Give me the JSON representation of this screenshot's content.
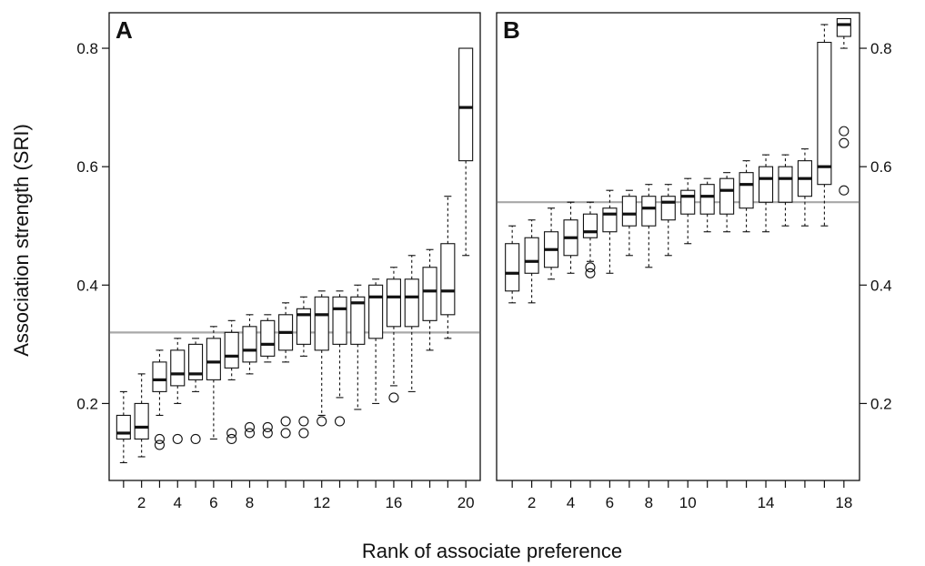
{
  "chart_data": [
    {
      "type": "boxplot",
      "panel_label": "A",
      "y_axis_side": "left",
      "ylim": [
        0.07,
        0.86
      ],
      "yticks": [
        0.2,
        0.4,
        0.6,
        0.8
      ],
      "ytick_labels": [
        "0.2",
        "0.4",
        "0.6",
        "0.8"
      ],
      "xlim": [
        0.2,
        20.8
      ],
      "xticks": [
        1,
        2,
        3,
        4,
        5,
        6,
        7,
        8,
        9,
        10,
        11,
        12,
        13,
        14,
        15,
        16,
        17,
        18,
        19,
        20
      ],
      "xtick_labels": [
        "",
        "2",
        "",
        "4",
        "",
        "6",
        "",
        "8",
        "",
        "",
        "",
        "12",
        "",
        "",
        "",
        "16",
        "",
        "",
        "",
        "20"
      ],
      "reference_line": 0.32,
      "boxes": [
        {
          "x": 1,
          "whisker_low": 0.1,
          "q1": 0.14,
          "median": 0.15,
          "q3": 0.18,
          "whisker_high": 0.22,
          "outliers": []
        },
        {
          "x": 2,
          "whisker_low": 0.11,
          "q1": 0.14,
          "median": 0.16,
          "q3": 0.2,
          "whisker_high": 0.25,
          "outliers": []
        },
        {
          "x": 3,
          "whisker_low": 0.18,
          "q1": 0.22,
          "median": 0.24,
          "q3": 0.27,
          "whisker_high": 0.29,
          "outliers": [
            0.13,
            0.14
          ]
        },
        {
          "x": 4,
          "whisker_low": 0.2,
          "q1": 0.23,
          "median": 0.25,
          "q3": 0.29,
          "whisker_high": 0.31,
          "outliers": [
            0.14
          ]
        },
        {
          "x": 5,
          "whisker_low": 0.22,
          "q1": 0.24,
          "median": 0.25,
          "q3": 0.3,
          "whisker_high": 0.31,
          "outliers": [
            0.14
          ]
        },
        {
          "x": 6,
          "whisker_low": 0.14,
          "q1": 0.24,
          "median": 0.27,
          "q3": 0.31,
          "whisker_high": 0.33,
          "outliers": []
        },
        {
          "x": 7,
          "whisker_low": 0.24,
          "q1": 0.26,
          "median": 0.28,
          "q3": 0.32,
          "whisker_high": 0.34,
          "outliers": [
            0.14,
            0.15
          ]
        },
        {
          "x": 8,
          "whisker_low": 0.25,
          "q1": 0.27,
          "median": 0.29,
          "q3": 0.33,
          "whisker_high": 0.35,
          "outliers": [
            0.15,
            0.16
          ]
        },
        {
          "x": 9,
          "whisker_low": 0.27,
          "q1": 0.28,
          "median": 0.3,
          "q3": 0.34,
          "whisker_high": 0.35,
          "outliers": [
            0.15,
            0.16
          ]
        },
        {
          "x": 10,
          "whisker_low": 0.27,
          "q1": 0.29,
          "median": 0.32,
          "q3": 0.35,
          "whisker_high": 0.37,
          "outliers": [
            0.15,
            0.17
          ]
        },
        {
          "x": 11,
          "whisker_low": 0.28,
          "q1": 0.3,
          "median": 0.35,
          "q3": 0.36,
          "whisker_high": 0.38,
          "outliers": [
            0.15,
            0.17
          ]
        },
        {
          "x": 12,
          "whisker_low": 0.18,
          "q1": 0.29,
          "median": 0.35,
          "q3": 0.38,
          "whisker_high": 0.39,
          "outliers": [
            0.17
          ]
        },
        {
          "x": 13,
          "whisker_low": 0.21,
          "q1": 0.3,
          "median": 0.36,
          "q3": 0.38,
          "whisker_high": 0.39,
          "outliers": [
            0.17
          ]
        },
        {
          "x": 14,
          "whisker_low": 0.19,
          "q1": 0.3,
          "median": 0.37,
          "q3": 0.38,
          "whisker_high": 0.4,
          "outliers": []
        },
        {
          "x": 15,
          "whisker_low": 0.2,
          "q1": 0.31,
          "median": 0.38,
          "q3": 0.4,
          "whisker_high": 0.41,
          "outliers": []
        },
        {
          "x": 16,
          "whisker_low": 0.23,
          "q1": 0.33,
          "median": 0.38,
          "q3": 0.41,
          "whisker_high": 0.43,
          "outliers": [
            0.21
          ]
        },
        {
          "x": 17,
          "whisker_low": 0.22,
          "q1": 0.33,
          "median": 0.38,
          "q3": 0.41,
          "whisker_high": 0.45,
          "outliers": []
        },
        {
          "x": 18,
          "whisker_low": 0.29,
          "q1": 0.34,
          "median": 0.39,
          "q3": 0.43,
          "whisker_high": 0.46,
          "outliers": []
        },
        {
          "x": 19,
          "whisker_low": 0.31,
          "q1": 0.35,
          "median": 0.39,
          "q3": 0.47,
          "whisker_high": 0.55,
          "outliers": []
        },
        {
          "x": 20,
          "whisker_low": 0.45,
          "q1": 0.61,
          "median": 0.7,
          "q3": 0.8,
          "whisker_high": 0.8,
          "outliers": []
        }
      ]
    },
    {
      "type": "boxplot",
      "panel_label": "B",
      "y_axis_side": "right",
      "ylim": [
        0.07,
        0.86
      ],
      "yticks": [
        0.2,
        0.4,
        0.6,
        0.8
      ],
      "ytick_labels": [
        "0.2",
        "0.4",
        "0.6",
        "0.8"
      ],
      "xlim": [
        0.2,
        18.8
      ],
      "xticks": [
        1,
        2,
        3,
        4,
        5,
        6,
        7,
        8,
        9,
        10,
        11,
        12,
        13,
        14,
        15,
        16,
        17,
        18
      ],
      "xtick_labels": [
        "",
        "2",
        "",
        "4",
        "",
        "6",
        "",
        "8",
        "",
        "10",
        "",
        "",
        "",
        "14",
        "",
        "",
        "",
        "18"
      ],
      "reference_line": 0.54,
      "boxes": [
        {
          "x": 1,
          "whisker_low": 0.37,
          "q1": 0.39,
          "median": 0.42,
          "q3": 0.47,
          "whisker_high": 0.5,
          "outliers": []
        },
        {
          "x": 2,
          "whisker_low": 0.37,
          "q1": 0.42,
          "median": 0.44,
          "q3": 0.48,
          "whisker_high": 0.51,
          "outliers": []
        },
        {
          "x": 3,
          "whisker_low": 0.41,
          "q1": 0.43,
          "median": 0.46,
          "q3": 0.49,
          "whisker_high": 0.53,
          "outliers": []
        },
        {
          "x": 4,
          "whisker_low": 0.42,
          "q1": 0.45,
          "median": 0.48,
          "q3": 0.51,
          "whisker_high": 0.54,
          "outliers": []
        },
        {
          "x": 5,
          "whisker_low": 0.44,
          "q1": 0.48,
          "median": 0.49,
          "q3": 0.52,
          "whisker_high": 0.54,
          "outliers": [
            0.42,
            0.43
          ]
        },
        {
          "x": 6,
          "whisker_low": 0.42,
          "q1": 0.49,
          "median": 0.52,
          "q3": 0.53,
          "whisker_high": 0.56,
          "outliers": []
        },
        {
          "x": 7,
          "whisker_low": 0.45,
          "q1": 0.5,
          "median": 0.52,
          "q3": 0.55,
          "whisker_high": 0.56,
          "outliers": []
        },
        {
          "x": 8,
          "whisker_low": 0.43,
          "q1": 0.5,
          "median": 0.53,
          "q3": 0.55,
          "whisker_high": 0.57,
          "outliers": []
        },
        {
          "x": 9,
          "whisker_low": 0.45,
          "q1": 0.51,
          "median": 0.54,
          "q3": 0.55,
          "whisker_high": 0.57,
          "outliers": []
        },
        {
          "x": 10,
          "whisker_low": 0.47,
          "q1": 0.52,
          "median": 0.55,
          "q3": 0.56,
          "whisker_high": 0.58,
          "outliers": []
        },
        {
          "x": 11,
          "whisker_low": 0.49,
          "q1": 0.52,
          "median": 0.55,
          "q3": 0.57,
          "whisker_high": 0.58,
          "outliers": []
        },
        {
          "x": 12,
          "whisker_low": 0.49,
          "q1": 0.52,
          "median": 0.56,
          "q3": 0.58,
          "whisker_high": 0.59,
          "outliers": []
        },
        {
          "x": 13,
          "whisker_low": 0.49,
          "q1": 0.53,
          "median": 0.57,
          "q3": 0.59,
          "whisker_high": 0.61,
          "outliers": []
        },
        {
          "x": 14,
          "whisker_low": 0.49,
          "q1": 0.54,
          "median": 0.58,
          "q3": 0.6,
          "whisker_high": 0.62,
          "outliers": []
        },
        {
          "x": 15,
          "whisker_low": 0.5,
          "q1": 0.54,
          "median": 0.58,
          "q3": 0.6,
          "whisker_high": 0.62,
          "outliers": []
        },
        {
          "x": 16,
          "whisker_low": 0.5,
          "q1": 0.55,
          "median": 0.58,
          "q3": 0.61,
          "whisker_high": 0.63,
          "outliers": []
        },
        {
          "x": 17,
          "whisker_low": 0.5,
          "q1": 0.57,
          "median": 0.6,
          "q3": 0.81,
          "whisker_high": 0.84,
          "outliers": []
        },
        {
          "x": 18,
          "whisker_low": 0.8,
          "q1": 0.82,
          "median": 0.84,
          "q3": 0.85,
          "whisker_high": 0.85,
          "outliers": [
            0.56,
            0.64,
            0.66
          ]
        }
      ]
    }
  ],
  "axes": {
    "ylabel": "Association strength (SRI)",
    "xlabel": "Rank of associate preference"
  },
  "colors": {
    "reference_line": "#a8a8a8",
    "ink": "#111111"
  }
}
